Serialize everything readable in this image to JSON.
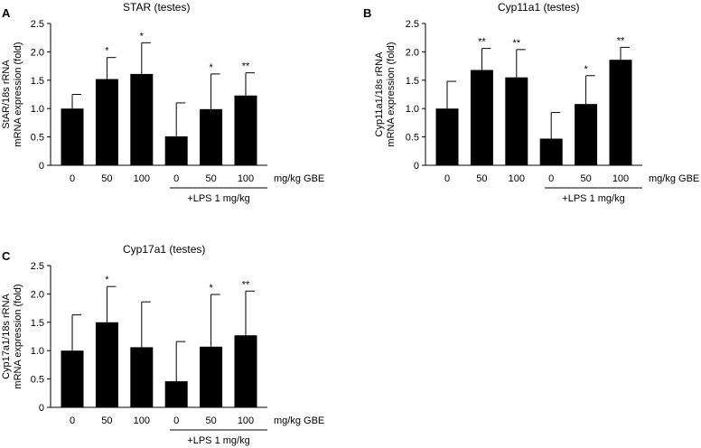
{
  "chart_data": [
    {
      "type": "bar",
      "panel_label": "A",
      "title": "STAR (testes)",
      "ylabel": [
        "StAR/18s rRNA",
        "mRNA expression (fold)"
      ],
      "ylim": [
        0,
        2.5
      ],
      "yticks": [
        "0",
        "0.5",
        "1.0",
        "1.5",
        "2.0",
        "2.5"
      ],
      "categories": [
        "0",
        "50",
        "100",
        "0",
        "50",
        "100"
      ],
      "values": [
        1.0,
        1.52,
        1.61,
        0.51,
        0.99,
        1.23
      ],
      "errors": [
        0.25,
        0.38,
        0.55,
        0.59,
        0.62,
        0.4
      ],
      "significance": [
        "",
        "*",
        "*",
        "",
        "*",
        "**"
      ],
      "unit_label": "mg/kg GBE",
      "group_label": "+LPS 1 mg/kg"
    },
    {
      "type": "bar",
      "panel_label": "B",
      "title": "Cyp11a1 (testes)",
      "ylabel": [
        "Cyp11a1/18s rRNA",
        "mRNA expression (fold)"
      ],
      "ylim": [
        0,
        2.5
      ],
      "yticks": [
        "0",
        "0.5",
        "1.0",
        "1.5",
        "2.0",
        "2.5"
      ],
      "categories": [
        "0",
        "50",
        "100",
        "0",
        "50",
        "100"
      ],
      "values": [
        1.0,
        1.68,
        1.55,
        0.47,
        1.08,
        1.86
      ],
      "errors": [
        0.48,
        0.38,
        0.49,
        0.46,
        0.5,
        0.22
      ],
      "significance": [
        "",
        "**",
        "**",
        "",
        "*",
        "**"
      ],
      "unit_label": "mg/kg GBE",
      "group_label": "+LPS 1 mg/kg"
    },
    {
      "type": "bar",
      "panel_label": "C",
      "title": "Cyp17a1 (testes)",
      "ylabel": [
        "Cyp17a1/18s rRNA",
        "mRNA expression (fold)"
      ],
      "ylim": [
        0,
        2.5
      ],
      "yticks": [
        "0",
        "0.5",
        "1.0",
        "1.5",
        "2.0",
        "2.5"
      ],
      "categories": [
        "0",
        "50",
        "100",
        "0",
        "50",
        "100"
      ],
      "values": [
        1.0,
        1.5,
        1.06,
        0.46,
        1.07,
        1.27
      ],
      "errors": [
        0.63,
        0.63,
        0.8,
        0.7,
        0.92,
        0.78
      ],
      "significance": [
        "",
        "*",
        "",
        "",
        "*",
        "**"
      ],
      "unit_label": "mg/kg GBE",
      "group_label": "+LPS 1 mg/kg"
    }
  ]
}
